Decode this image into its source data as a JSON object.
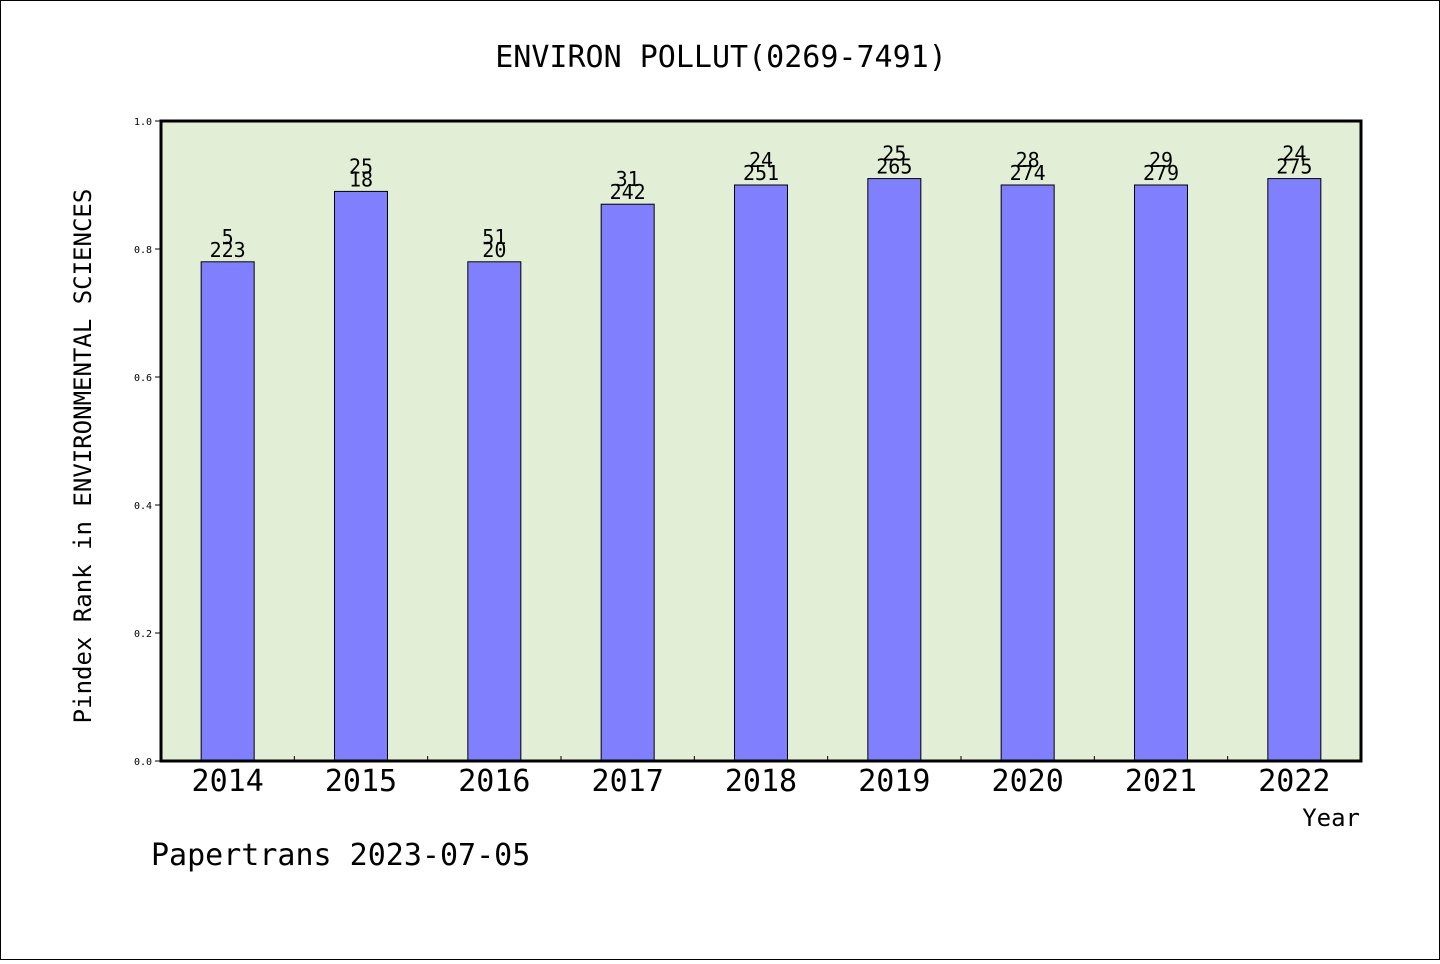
{
  "colors": {
    "plot_background": "#e2efd6",
    "bar_fill": "#8080ff",
    "bar_stroke": "#000000",
    "axis": "#000000"
  },
  "chart_data": {
    "type": "bar",
    "title": "ENVIRON POLLUT(0269-7491)",
    "xlabel": "Year",
    "ylabel": "Pindex Rank in ENVIRONMENTAL SCIENCES",
    "ylim": [
      0,
      1.0
    ],
    "yticks": [
      0.0,
      0.2,
      0.4,
      0.6,
      0.8,
      1.0
    ],
    "ytick_labels": [
      "0.0",
      "0.2",
      "0.4",
      "0.6",
      "0.8",
      "1.0"
    ],
    "grid": false,
    "categories": [
      "2014",
      "2015",
      "2016",
      "2017",
      "2018",
      "2019",
      "2020",
      "2021",
      "2022"
    ],
    "values": [
      0.78,
      0.89,
      0.78,
      0.87,
      0.9,
      0.91,
      0.9,
      0.9,
      0.91
    ],
    "rank_labels": [
      "5",
      "25",
      "51",
      "31",
      "24",
      "25",
      "28",
      "29",
      "24"
    ],
    "total_labels": [
      "223",
      "18",
      "20",
      "242",
      "251",
      "265",
      "274",
      "279",
      "275"
    ]
  },
  "footer": {
    "watermark": "Papertrans 2023-07-05"
  }
}
